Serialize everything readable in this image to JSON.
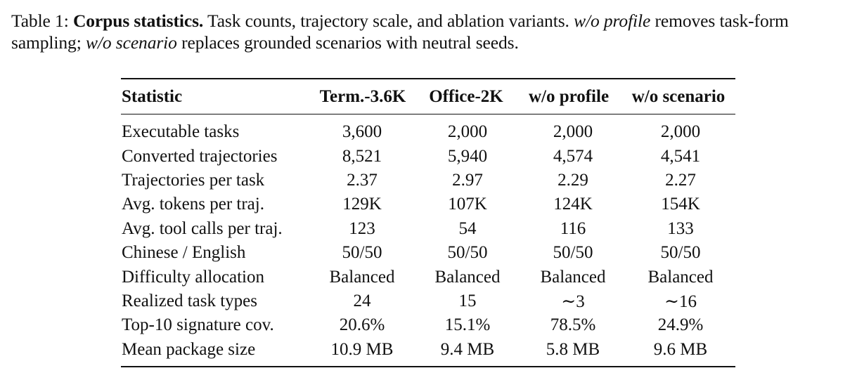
{
  "caption": {
    "label": "Table 1:",
    "title": "Corpus statistics.",
    "text_1": "Task counts, trajectory scale, and ablation variants.",
    "em_1": "w/o profile",
    "text_2": "removes task-form sampling;",
    "em_2": "w/o scenario",
    "text_3": "replaces grounded scenarios with neutral seeds."
  },
  "table": {
    "columns": [
      "Statistic",
      "Term.-3.6K",
      "Office-2K",
      "w/o profile",
      "w/o scenario"
    ],
    "rows": [
      [
        "Executable tasks",
        "3,600",
        "2,000",
        "2,000",
        "2,000"
      ],
      [
        "Converted trajectories",
        "8,521",
        "5,940",
        "4,574",
        "4,541"
      ],
      [
        "Trajectories per task",
        "2.37",
        "2.97",
        "2.29",
        "2.27"
      ],
      [
        "Avg. tokens per traj.",
        "129K",
        "107K",
        "124K",
        "154K"
      ],
      [
        "Avg. tool calls per traj.",
        "123",
        "54",
        "116",
        "133"
      ],
      [
        "Chinese / English",
        "50/50",
        "50/50",
        "50/50",
        "50/50"
      ],
      [
        "Difficulty allocation",
        "Balanced",
        "Balanced",
        "Balanced",
        "Balanced"
      ],
      [
        "Realized task types",
        "24",
        "15",
        "∼3",
        "∼16"
      ],
      [
        "Top-10 signature cov.",
        "20.6%",
        "15.1%",
        "78.5%",
        "24.9%"
      ],
      [
        "Mean package size",
        "10.9 MB",
        "9.4 MB",
        "5.8 MB",
        "9.6 MB"
      ]
    ]
  }
}
